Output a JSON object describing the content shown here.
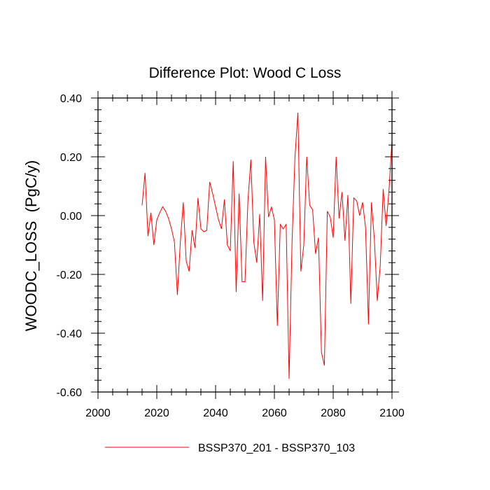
{
  "chart_data": {
    "type": "line",
    "title": "Difference Plot: Wood C Loss",
    "xlabel": "",
    "ylabel": "WOODC_LOSS  (PgC/y)",
    "xlim": [
      2000,
      2100
    ],
    "ylim": [
      -0.6,
      0.4
    ],
    "x_ticks": [
      2000,
      2020,
      2040,
      2060,
      2080,
      2100
    ],
    "x_tick_labels": [
      "2000",
      "2020",
      "2040",
      "2060",
      "2080",
      "2100"
    ],
    "y_ticks": [
      -0.6,
      -0.4,
      -0.2,
      0.0,
      0.2,
      0.4
    ],
    "y_tick_labels": [
      "-0.60",
      "-0.40",
      "-0.20",
      "0.00",
      "0.20",
      "0.40"
    ],
    "grid": false,
    "legend_position": "bottom",
    "series": [
      {
        "name": "BSSP370_201 - BSSP370_103",
        "color": "#ff0000",
        "x": [
          2015,
          2016,
          2017,
          2018,
          2019,
          2020,
          2021,
          2022,
          2023,
          2024,
          2025,
          2026,
          2027,
          2028,
          2029,
          2030,
          2031,
          2032,
          2033,
          2034,
          2035,
          2036,
          2037,
          2038,
          2039,
          2040,
          2041,
          2042,
          2043,
          2044,
          2045,
          2046,
          2047,
          2048,
          2049,
          2050,
          2051,
          2052,
          2053,
          2054,
          2055,
          2056,
          2057,
          2058,
          2059,
          2060,
          2061,
          2062,
          2063,
          2064,
          2065,
          2066,
          2067,
          2068,
          2069,
          2070,
          2071,
          2072,
          2073,
          2074,
          2075,
          2076,
          2077,
          2078,
          2079,
          2080,
          2081,
          2082,
          2083,
          2084,
          2085,
          2086,
          2087,
          2088,
          2089,
          2090,
          2091,
          2092,
          2093,
          2094,
          2095,
          2096,
          2097,
          2098,
          2099,
          2100
        ],
        "y": [
          0.035,
          0.145,
          -0.07,
          0.01,
          -0.1,
          -0.015,
          0.01,
          0.03,
          0.015,
          -0.01,
          -0.045,
          -0.09,
          -0.27,
          -0.09,
          0.045,
          -0.155,
          -0.19,
          -0.05,
          -0.11,
          0.06,
          -0.045,
          -0.055,
          -0.05,
          0.115,
          0.075,
          0.03,
          -0.015,
          -0.045,
          0.055,
          -0.1,
          -0.12,
          0.185,
          -0.26,
          0.075,
          -0.225,
          -0.225,
          0.05,
          0.19,
          -0.09,
          -0.16,
          0.005,
          -0.29,
          0.2,
          -0.005,
          0.03,
          -0.015,
          -0.375,
          -0.03,
          -0.045,
          -0.03,
          -0.555,
          -0.09,
          0.2,
          0.35,
          -0.19,
          -0.1,
          0.2,
          0.035,
          0.02,
          -0.13,
          -0.075,
          -0.465,
          -0.51,
          0.015,
          -0.005,
          -0.075,
          0.2,
          -0.01,
          0.08,
          -0.085,
          0.07,
          -0.3,
          0.06,
          0.05,
          0.0,
          0.045,
          -0.04,
          -0.37,
          0.045,
          -0.08,
          -0.29,
          -0.17,
          0.09,
          -0.035,
          0.09,
          0.255
        ]
      }
    ]
  }
}
